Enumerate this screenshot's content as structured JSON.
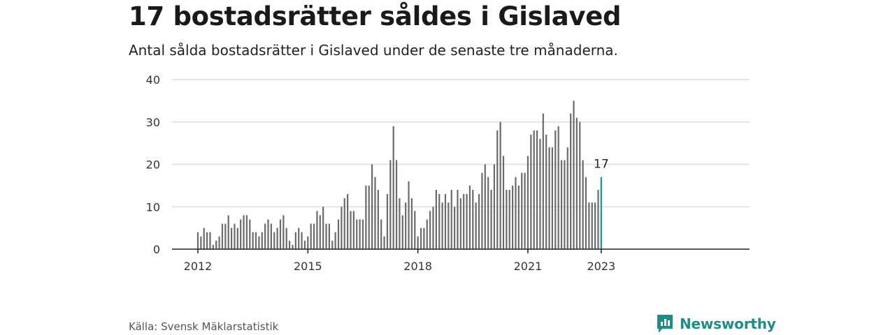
{
  "title": "17 bostadsrätter såldes i Gislaved",
  "subtitle": "Antal sålda bostadsrätter i Gislaved under de senaste tre månaderna.",
  "source": "Källa: Svensk Mäklarstatistik",
  "brand": {
    "name": "Newsworthy",
    "icon": "newsworthy-logo-icon",
    "color": "#1f8c88"
  },
  "colors": {
    "bar": "#6b6b6b",
    "highlight": "#1f9e97",
    "grid": "#dddddd",
    "axis": "#222222"
  },
  "chart_data": {
    "type": "bar",
    "start": "2012-01",
    "x_ticks": [
      "2012",
      "2015",
      "2018",
      "2021",
      "2023"
    ],
    "y_ticks": [
      "0",
      "10",
      "20",
      "30",
      "40"
    ],
    "ylim": [
      0,
      40
    ],
    "grid": true,
    "highlight_label": "17",
    "values": [
      4,
      3,
      5,
      4,
      4,
      1,
      2,
      3,
      6,
      6,
      8,
      5,
      6,
      5,
      7,
      8,
      8,
      7,
      4,
      4,
      3,
      4,
      6,
      7,
      6,
      4,
      5,
      7,
      8,
      5,
      2,
      1,
      4,
      5,
      4,
      2,
      3,
      6,
      6,
      9,
      8,
      10,
      6,
      6,
      2,
      4,
      7,
      10,
      12,
      13,
      9,
      9,
      7,
      7,
      7,
      15,
      15,
      20,
      17,
      14,
      7,
      3,
      13,
      21,
      29,
      21,
      12,
      8,
      11,
      16,
      12,
      9,
      3,
      5,
      5,
      7,
      9,
      10,
      14,
      13,
      11,
      13,
      11,
      14,
      10,
      14,
      12,
      13,
      13,
      15,
      14,
      11,
      13,
      18,
      20,
      17,
      14,
      20,
      28,
      30,
      22,
      14,
      14,
      15,
      17,
      15,
      18,
      18,
      22,
      27,
      28,
      28,
      26,
      32,
      27,
      24,
      24,
      28,
      29,
      21,
      21,
      24,
      32,
      35,
      31,
      30,
      21,
      17,
      11,
      11,
      11,
      14,
      17
    ]
  }
}
